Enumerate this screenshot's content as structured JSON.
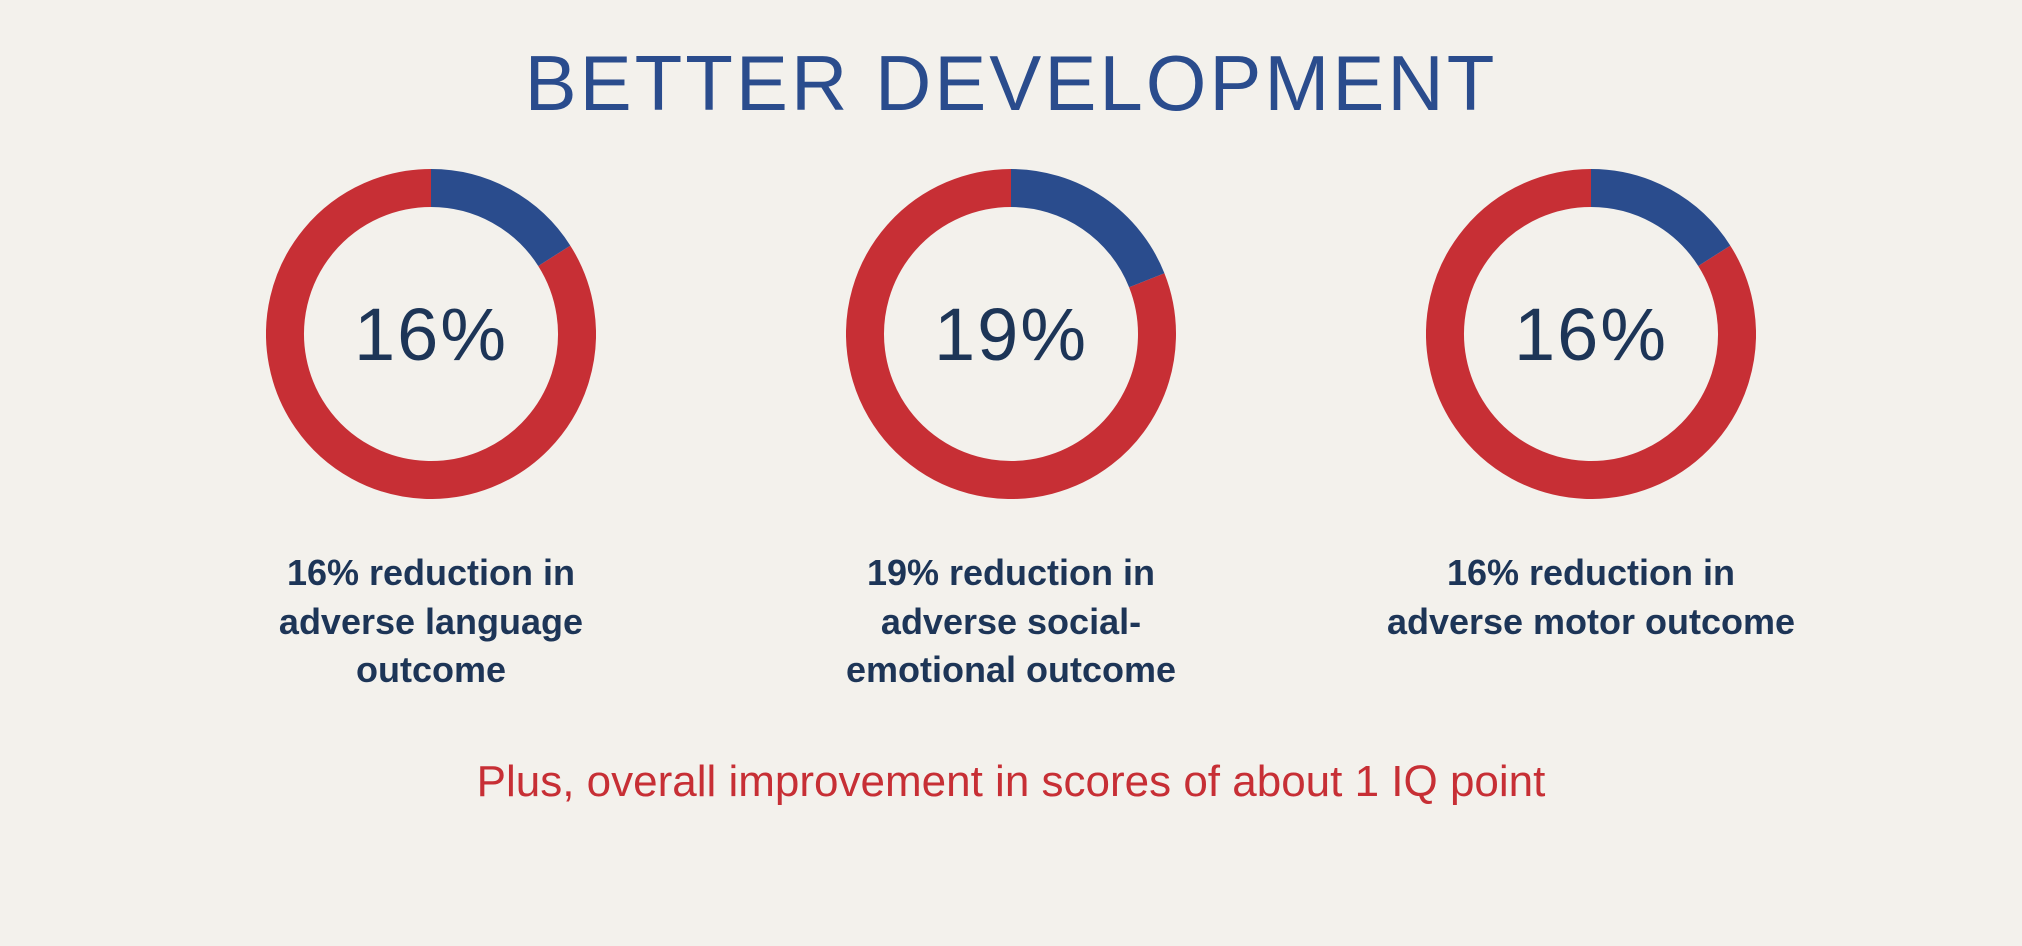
{
  "background_color": "#f3f1ec",
  "title": {
    "text": "BETTER DEVELOPMENT",
    "color": "#2a4c8d",
    "fontsize": 78,
    "letter_spacing": 3
  },
  "donuts": [
    {
      "percent": 16,
      "value_label": "16%",
      "caption": "16% reduction in adverse language outcome",
      "secondary_color": "#2a4c8d",
      "primary_color": "#c72f35",
      "value_color": "#1d3557",
      "caption_color": "#1d3557",
      "ring_thickness": 38,
      "size": 330,
      "start_angle_deg": 0
    },
    {
      "percent": 19,
      "value_label": "19%",
      "caption": "19% reduction in adverse social-emotional outcome",
      "secondary_color": "#2a4c8d",
      "primary_color": "#c72f35",
      "value_color": "#1d3557",
      "caption_color": "#1d3557",
      "ring_thickness": 38,
      "size": 330,
      "start_angle_deg": 0
    },
    {
      "percent": 16,
      "value_label": "16%",
      "caption": "16% reduction in adverse motor outcome",
      "secondary_color": "#2a4c8d",
      "primary_color": "#c72f35",
      "value_color": "#1d3557",
      "caption_color": "#1d3557",
      "ring_thickness": 38,
      "size": 330,
      "start_angle_deg": 0
    }
  ],
  "footer": {
    "text": "Plus, overall improvement in scores of about 1 IQ point",
    "color": "#c72f35",
    "fontsize": 44
  }
}
